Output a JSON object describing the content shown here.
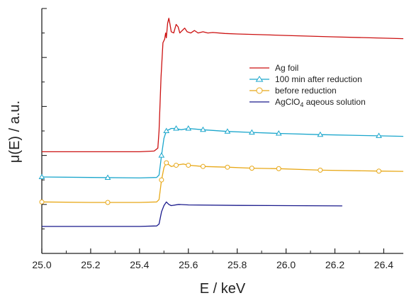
{
  "chart_data": {
    "type": "line",
    "xlabel": "E / keV",
    "ylabel": "μ(E) / a.u.",
    "xlim": [
      25.0,
      26.48
    ],
    "ylim": [
      0,
      1
    ],
    "x_ticks": [
      "25.0",
      "25.2",
      "25.4",
      "25.6",
      "25.8",
      "26.0",
      "26.2",
      "26.4"
    ],
    "y_ticks_labeled": false,
    "legend_position": "upper-right",
    "series": [
      {
        "name": "Ag foil",
        "color": "#cc1111",
        "marker": "none",
        "points": [
          [
            25.0,
            0.415
          ],
          [
            25.2,
            0.415
          ],
          [
            25.4,
            0.415
          ],
          [
            25.46,
            0.418
          ],
          [
            25.475,
            0.43
          ],
          [
            25.48,
            0.5
          ],
          [
            25.488,
            0.72
          ],
          [
            25.496,
            0.86
          ],
          [
            25.503,
            0.875
          ],
          [
            25.507,
            0.9
          ],
          [
            25.51,
            0.88
          ],
          [
            25.515,
            0.94
          ],
          [
            25.52,
            0.96
          ],
          [
            25.525,
            0.935
          ],
          [
            25.53,
            0.905
          ],
          [
            25.54,
            0.9
          ],
          [
            25.55,
            0.935
          ],
          [
            25.558,
            0.925
          ],
          [
            25.565,
            0.9
          ],
          [
            25.575,
            0.91
          ],
          [
            25.585,
            0.92
          ],
          [
            25.595,
            0.905
          ],
          [
            25.61,
            0.9
          ],
          [
            25.625,
            0.91
          ],
          [
            25.64,
            0.9
          ],
          [
            25.66,
            0.905
          ],
          [
            25.68,
            0.9
          ],
          [
            25.7,
            0.902
          ],
          [
            25.75,
            0.898
          ],
          [
            25.8,
            0.896
          ],
          [
            25.9,
            0.893
          ],
          [
            26.0,
            0.89
          ],
          [
            26.2,
            0.884
          ],
          [
            26.48,
            0.877
          ]
        ]
      },
      {
        "name": "100 min after reduction",
        "color": "#1aa6cc",
        "marker": "triangle",
        "marker_x": [
          25.0,
          25.27,
          25.49,
          25.51,
          25.55,
          25.6,
          25.66,
          25.76,
          25.86,
          25.97,
          26.14,
          26.38
        ],
        "points": [
          [
            25.0,
            0.312
          ],
          [
            25.2,
            0.31
          ],
          [
            25.4,
            0.308
          ],
          [
            25.47,
            0.31
          ],
          [
            25.48,
            0.32
          ],
          [
            25.49,
            0.4
          ],
          [
            25.5,
            0.47
          ],
          [
            25.51,
            0.5
          ],
          [
            25.53,
            0.51
          ],
          [
            25.55,
            0.51
          ],
          [
            25.57,
            0.505
          ],
          [
            25.6,
            0.51
          ],
          [
            25.66,
            0.505
          ],
          [
            25.76,
            0.498
          ],
          [
            25.86,
            0.494
          ],
          [
            25.97,
            0.49
          ],
          [
            26.14,
            0.485
          ],
          [
            26.38,
            0.48
          ],
          [
            26.48,
            0.478
          ]
        ]
      },
      {
        "name": "before reduction",
        "color": "#e8a817",
        "marker": "circle",
        "marker_x": [
          25.0,
          25.27,
          25.49,
          25.51,
          25.55,
          25.6,
          25.66,
          25.76,
          25.86,
          25.97,
          26.14,
          26.38
        ],
        "points": [
          [
            25.0,
            0.21
          ],
          [
            25.2,
            0.208
          ],
          [
            25.4,
            0.208
          ],
          [
            25.47,
            0.21
          ],
          [
            25.48,
            0.22
          ],
          [
            25.49,
            0.3
          ],
          [
            25.5,
            0.35
          ],
          [
            25.51,
            0.37
          ],
          [
            25.53,
            0.355
          ],
          [
            25.55,
            0.36
          ],
          [
            25.58,
            0.365
          ],
          [
            25.6,
            0.36
          ],
          [
            25.66,
            0.355
          ],
          [
            25.76,
            0.352
          ],
          [
            25.86,
            0.348
          ],
          [
            25.97,
            0.346
          ],
          [
            26.14,
            0.34
          ],
          [
            26.38,
            0.336
          ],
          [
            26.48,
            0.335
          ]
        ]
      },
      {
        "name": "AgClO4 aqeous solution",
        "legend_label": {
          "prefix": "AgClO",
          "subscript": "4",
          "suffix": " aqeous solution"
        },
        "color": "#1a1a8c",
        "marker": "none",
        "points": [
          [
            25.0,
            0.11
          ],
          [
            25.2,
            0.11
          ],
          [
            25.4,
            0.11
          ],
          [
            25.47,
            0.112
          ],
          [
            25.48,
            0.12
          ],
          [
            25.49,
            0.17
          ],
          [
            25.5,
            0.195
          ],
          [
            25.51,
            0.21
          ],
          [
            25.52,
            0.2
          ],
          [
            25.53,
            0.195
          ],
          [
            25.56,
            0.2
          ],
          [
            25.6,
            0.198
          ],
          [
            25.8,
            0.196
          ],
          [
            26.0,
            0.195
          ],
          [
            26.23,
            0.194
          ]
        ]
      }
    ]
  }
}
